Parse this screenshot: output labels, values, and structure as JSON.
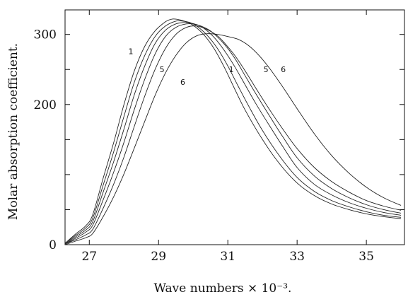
{
  "chart_data": {
    "type": "line",
    "title": "",
    "xlabel": "Wave numbers × 10⁻³.",
    "ylabel": "Molar absorption coefficient.",
    "xlim": [
      26.3,
      36.1
    ],
    "ylim": [
      0,
      335
    ],
    "x_ticks": [
      27,
      29,
      31,
      33,
      35
    ],
    "x_tick_labels": [
      "27",
      "29",
      "31",
      "33",
      "35"
    ],
    "y_ticks": [
      0,
      200,
      300
    ],
    "y_tick_labels": [
      "0",
      "200",
      "300"
    ],
    "y_minor_ticks": [
      50,
      100,
      150,
      250
    ],
    "grid": false,
    "legend": "none",
    "series": [
      {
        "id": "c1",
        "x": [
          26.3,
          26.6,
          26.9,
          27.1,
          27.4,
          27.7,
          28.0,
          28.3,
          28.6,
          28.9,
          29.2,
          29.4,
          29.6,
          29.8,
          30.0,
          30.3,
          30.6,
          30.9,
          31.2,
          31.5,
          32.0,
          32.5,
          33.0,
          33.5,
          34.0,
          34.5,
          35.0,
          35.5,
          36.0
        ],
        "y": [
          2,
          15,
          27,
          43,
          95,
          145,
          200,
          248,
          283,
          305,
          318,
          322,
          321,
          318,
          313,
          300,
          280,
          253,
          222,
          192,
          150,
          115,
          88,
          70,
          58,
          50,
          44,
          40,
          37
        ]
      },
      {
        "id": "c2",
        "x": [
          26.3,
          26.6,
          26.9,
          27.1,
          27.4,
          27.7,
          28.0,
          28.3,
          28.6,
          28.9,
          29.2,
          29.5,
          29.7,
          29.9,
          30.1,
          30.4,
          30.7,
          31.0,
          31.3,
          31.6,
          32.0,
          32.5,
          33.0,
          33.5,
          34.0,
          34.5,
          35.0,
          35.5,
          36.0
        ],
        "y": [
          2,
          13,
          24,
          38,
          85,
          132,
          183,
          232,
          270,
          297,
          312,
          319,
          319,
          317,
          312,
          299,
          280,
          255,
          226,
          198,
          163,
          126,
          96,
          76,
          63,
          54,
          47,
          42,
          39
        ]
      },
      {
        "id": "c3",
        "x": [
          26.3,
          26.6,
          26.9,
          27.1,
          27.4,
          27.7,
          28.0,
          28.3,
          28.6,
          28.9,
          29.2,
          29.5,
          29.8,
          30.1,
          30.3,
          30.6,
          30.9,
          31.2,
          31.5,
          31.8,
          32.2,
          32.6,
          33.0,
          33.5,
          34.0,
          34.5,
          35.0,
          35.5,
          36.0
        ],
        "y": [
          1,
          11,
          21,
          33,
          75,
          118,
          165,
          214,
          255,
          287,
          306,
          315,
          317,
          314,
          309,
          296,
          277,
          254,
          228,
          202,
          170,
          139,
          110,
          86,
          71,
          60,
          52,
          46,
          42
        ]
      },
      {
        "id": "c4",
        "x": [
          26.3,
          26.6,
          26.9,
          27.1,
          27.4,
          27.7,
          28.0,
          28.3,
          28.6,
          28.9,
          29.2,
          29.5,
          29.8,
          30.1,
          30.4,
          30.6,
          30.9,
          31.2,
          31.5,
          31.8,
          32.2,
          32.6,
          33.0,
          33.5,
          34.0,
          34.5,
          35.0,
          35.5,
          36.0
        ],
        "y": [
          1,
          9,
          18,
          28,
          64,
          103,
          146,
          193,
          236,
          272,
          297,
          310,
          315,
          314,
          308,
          301,
          286,
          266,
          241,
          216,
          184,
          153,
          124,
          98,
          80,
          67,
          57,
          50,
          45
        ]
      },
      {
        "id": "c5",
        "x": [
          26.3,
          26.6,
          26.9,
          27.1,
          27.4,
          27.7,
          28.0,
          28.3,
          28.6,
          28.9,
          29.2,
          29.5,
          29.8,
          30.1,
          30.4,
          30.7,
          30.9,
          31.2,
          31.5,
          31.8,
          32.2,
          32.6,
          33.0,
          33.5,
          34.0,
          34.5,
          35.0,
          35.5,
          36.0
        ],
        "y": [
          1,
          7,
          14,
          22,
          52,
          86,
          125,
          169,
          212,
          250,
          280,
          300,
          310,
          312,
          307,
          298,
          288,
          270,
          248,
          224,
          193,
          164,
          137,
          110,
          90,
          75,
          63,
          55,
          49
        ]
      },
      {
        "id": "c6",
        "x": [
          26.3,
          26.6,
          26.9,
          27.1,
          27.4,
          27.7,
          28.0,
          28.3,
          28.6,
          28.9,
          29.2,
          29.5,
          29.8,
          30.1,
          30.4,
          30.7,
          31.0,
          31.3,
          31.6,
          31.9,
          32.2,
          32.6,
          33.0,
          33.5,
          34.0,
          34.5,
          35.0,
          35.5,
          36.0
        ],
        "y": [
          0,
          5,
          10,
          16,
          40,
          68,
          101,
          138,
          176,
          213,
          245,
          270,
          288,
          298,
          301,
          300,
          297,
          293,
          284,
          270,
          252,
          224,
          194,
          158,
          127,
          102,
          82,
          67,
          56
        ]
      }
    ],
    "curve_labels": [
      {
        "text": "1",
        "x": 28.2,
        "y": 272
      },
      {
        "text": "5",
        "x": 29.1,
        "y": 246
      },
      {
        "text": "6",
        "x": 29.7,
        "y": 228
      },
      {
        "text": "1",
        "x": 31.1,
        "y": 246
      },
      {
        "text": "5",
        "x": 32.1,
        "y": 246
      },
      {
        "text": "6",
        "x": 32.6,
        "y": 246
      }
    ]
  }
}
